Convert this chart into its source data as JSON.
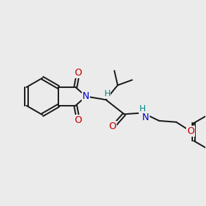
{
  "background_color": "#ebebeb",
  "bond_color": "#1a1a1a",
  "bond_width": 1.5,
  "atom_colors": {
    "N": "#0000cc",
    "O": "#cc0000",
    "H": "#008080",
    "C": "#1a1a1a"
  },
  "font_size_atoms": 10,
  "font_size_h": 9
}
